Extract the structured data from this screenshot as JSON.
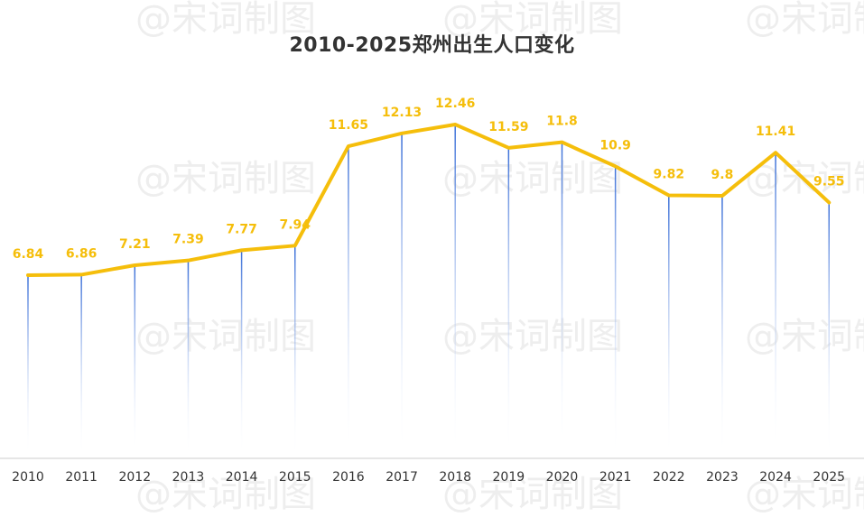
{
  "title": "2010-2025郑州出生人口变化",
  "watermark": "@宋词制图",
  "colors": {
    "line": "#F5BE0B",
    "label": "#F5BE0B",
    "drop_line_top": "#3A6FD8",
    "drop_line_bottom": "#FFFFFF",
    "axis": "#CCCCCC",
    "tick_text": "#333333"
  },
  "chart_data": {
    "type": "line",
    "title": "2010-2025郑州出生人口变化",
    "xlabel": "",
    "ylabel": "",
    "grid": false,
    "categories": [
      "2010",
      "2011",
      "2012",
      "2013",
      "2014",
      "2015",
      "2016",
      "2017",
      "2018",
      "2019",
      "2020",
      "2021",
      "2022",
      "2023",
      "2024",
      "2025"
    ],
    "series": [
      {
        "values": [
          6.84,
          6.86,
          7.21,
          7.39,
          7.77,
          7.94,
          11.65,
          12.13,
          12.46,
          11.59,
          11.8,
          10.9,
          9.82,
          9.8,
          11.41,
          9.55
        ],
        "labels": [
          "6.84",
          "6.86",
          "7.21",
          "7.39",
          "7.77",
          "7.94",
          "11.65",
          "12.13",
          "12.46",
          "11.59",
          "11.8",
          "10.9",
          "9.82",
          "9.8",
          "11.41",
          "9.55"
        ]
      }
    ]
  }
}
